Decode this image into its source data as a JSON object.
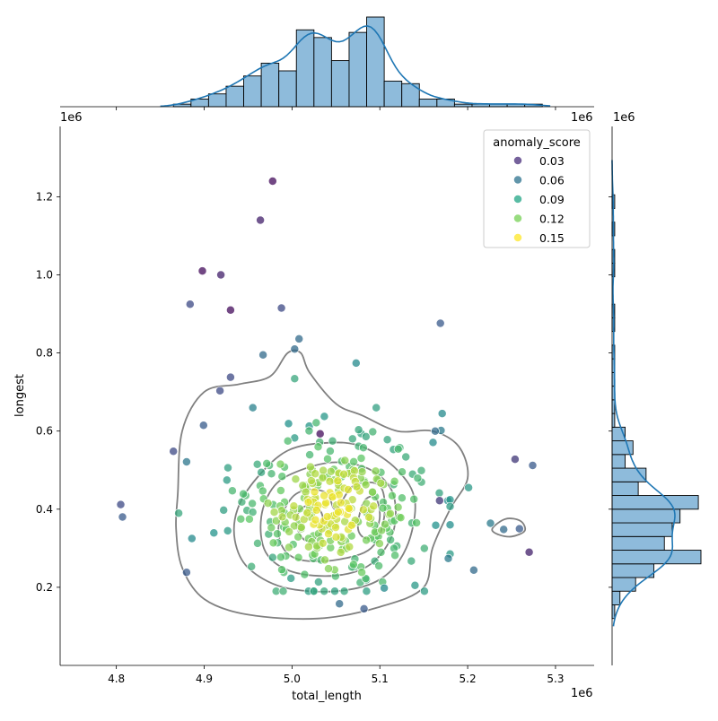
{
  "chart_data": {
    "type": "scatter",
    "subtype": "jointplot",
    "xlabel": "total_length",
    "ylabel": "longest",
    "x_offset_text": "1e6",
    "y_offset_text": "1e6",
    "top_offset_text": "1e6",
    "right_offset_text": "1e6",
    "xlim": [
      4.736,
      5.344
    ],
    "ylim": [
      0.0,
      1.38
    ],
    "x_ticks": [
      4.8,
      4.9,
      5.0,
      5.1,
      5.2,
      5.3
    ],
    "x_tick_labels": [
      "4.8",
      "4.9",
      "5.0",
      "5.1",
      "5.2",
      "5.3"
    ],
    "y_ticks": [
      0.2,
      0.4,
      0.6,
      0.8,
      1.0,
      1.2
    ],
    "y_tick_labels": [
      "0.2",
      "0.4",
      "0.6",
      "0.8",
      "1.0",
      "1.2"
    ],
    "legend": {
      "title": "anomaly_score",
      "placement": "upper right",
      "entries": [
        {
          "label": "0.03",
          "color": "#472c7a"
        },
        {
          "label": "0.06",
          "color": "#2c718e"
        },
        {
          "label": "0.09",
          "color": "#21a685"
        },
        {
          "label": "0.12",
          "color": "#75d054"
        },
        {
          "label": "0.15",
          "color": "#fde725"
        }
      ]
    },
    "colormap": "viridis",
    "outliers": [
      {
        "x": 4.978,
        "y": 1.24,
        "score": 0.01
      },
      {
        "x": 4.964,
        "y": 1.14,
        "score": 0.02
      },
      {
        "x": 4.898,
        "y": 1.01,
        "score": 0.01
      },
      {
        "x": 4.919,
        "y": 1.0,
        "score": 0.02
      },
      {
        "x": 4.93,
        "y": 0.91,
        "score": 0.01
      },
      {
        "x": 4.884,
        "y": 0.925,
        "score": 0.04
      },
      {
        "x": 4.988,
        "y": 0.915,
        "score": 0.04
      },
      {
        "x": 5.169,
        "y": 0.876,
        "score": 0.05
      },
      {
        "x": 5.008,
        "y": 0.836,
        "score": 0.06
      },
      {
        "x": 5.003,
        "y": 0.81,
        "score": 0.06
      },
      {
        "x": 4.967,
        "y": 0.795,
        "score": 0.06
      },
      {
        "x": 5.073,
        "y": 0.774,
        "score": 0.08
      },
      {
        "x": 4.93,
        "y": 0.738,
        "score": 0.04
      },
      {
        "x": 4.918,
        "y": 0.703,
        "score": 0.04
      },
      {
        "x": 5.003,
        "y": 0.734,
        "score": 0.1
      },
      {
        "x": 5.032,
        "y": 0.593,
        "score": 0.01
      },
      {
        "x": 4.865,
        "y": 0.548,
        "score": 0.04
      },
      {
        "x": 4.805,
        "y": 0.412,
        "score": 0.04
      },
      {
        "x": 4.807,
        "y": 0.38,
        "score": 0.05
      },
      {
        "x": 5.254,
        "y": 0.528,
        "score": 0.03
      },
      {
        "x": 5.274,
        "y": 0.512,
        "score": 0.05
      },
      {
        "x": 5.168,
        "y": 0.422,
        "score": 0.03
      },
      {
        "x": 5.27,
        "y": 0.29,
        "score": 0.02
      },
      {
        "x": 5.241,
        "y": 0.348,
        "score": 0.06
      },
      {
        "x": 5.259,
        "y": 0.35,
        "score": 0.05
      },
      {
        "x": 5.226,
        "y": 0.364,
        "score": 0.07
      },
      {
        "x": 5.207,
        "y": 0.244,
        "score": 0.06
      },
      {
        "x": 5.178,
        "y": 0.274,
        "score": 0.07
      },
      {
        "x": 5.082,
        "y": 0.145,
        "score": 0.05
      },
      {
        "x": 5.054,
        "y": 0.158,
        "score": 0.06
      },
      {
        "x": 5.171,
        "y": 0.645,
        "score": 0.08
      },
      {
        "x": 5.163,
        "y": 0.6,
        "score": 0.06
      },
      {
        "x": 5.201,
        "y": 0.455,
        "score": 0.09
      },
      {
        "x": 4.871,
        "y": 0.39,
        "score": 0.1
      },
      {
        "x": 4.886,
        "y": 0.325,
        "score": 0.08
      },
      {
        "x": 5.14,
        "y": 0.205,
        "score": 0.09
      },
      {
        "x": 5.105,
        "y": 0.198,
        "score": 0.08
      }
    ],
    "cluster": {
      "n": 330,
      "center": [
        5.04,
        0.4
      ],
      "spread": [
        0.055,
        0.105
      ],
      "note": "dense cluster of points colored by anomaly_score between approx 0.03 and 0.16"
    },
    "contours": [
      {
        "level": 1,
        "color": "#808080",
        "points": [
          [
            4.87,
            0.44
          ],
          [
            4.875,
            0.6
          ],
          [
            4.9,
            0.7
          ],
          [
            4.94,
            0.72
          ],
          [
            4.975,
            0.74
          ],
          [
            4.995,
            0.8
          ],
          [
            5.01,
            0.8
          ],
          [
            5.02,
            0.75
          ],
          [
            5.05,
            0.67
          ],
          [
            5.08,
            0.64
          ],
          [
            5.12,
            0.6
          ],
          [
            5.16,
            0.6
          ],
          [
            5.19,
            0.56
          ],
          [
            5.2,
            0.48
          ],
          [
            5.18,
            0.4
          ],
          [
            5.16,
            0.3
          ],
          [
            5.15,
            0.2
          ],
          [
            5.1,
            0.15
          ],
          [
            5.03,
            0.12
          ],
          [
            4.95,
            0.13
          ],
          [
            4.9,
            0.17
          ],
          [
            4.875,
            0.25
          ],
          [
            4.868,
            0.35
          ]
        ]
      },
      {
        "level": 2,
        "color": "#808080",
        "points": [
          [
            4.938,
            0.4
          ],
          [
            4.96,
            0.48
          ],
          [
            4.995,
            0.55
          ],
          [
            5.04,
            0.57
          ],
          [
            5.08,
            0.56
          ],
          [
            5.12,
            0.5
          ],
          [
            5.14,
            0.42
          ],
          [
            5.13,
            0.3
          ],
          [
            5.1,
            0.22
          ],
          [
            5.05,
            0.19
          ],
          [
            4.99,
            0.2
          ],
          [
            4.95,
            0.25
          ],
          [
            4.935,
            0.32
          ]
        ]
      },
      {
        "level": 3,
        "color": "#808080",
        "points": [
          [
            4.965,
            0.38
          ],
          [
            4.98,
            0.46
          ],
          [
            5.01,
            0.5
          ],
          [
            5.05,
            0.52
          ],
          [
            5.09,
            0.5
          ],
          [
            5.115,
            0.44
          ],
          [
            5.115,
            0.34
          ],
          [
            5.09,
            0.26
          ],
          [
            5.05,
            0.23
          ],
          [
            5.0,
            0.24
          ],
          [
            4.97,
            0.29
          ]
        ]
      },
      {
        "level": 4,
        "color": "#808080",
        "points": [
          [
            4.985,
            0.36
          ],
          [
            5.0,
            0.43
          ],
          [
            5.02,
            0.45
          ],
          [
            5.04,
            0.44
          ],
          [
            5.05,
            0.4
          ],
          [
            5.07,
            0.46
          ],
          [
            5.1,
            0.46
          ],
          [
            5.105,
            0.38
          ],
          [
            5.09,
            0.3
          ],
          [
            5.05,
            0.27
          ],
          [
            5.01,
            0.27
          ],
          [
            4.99,
            0.3
          ]
        ]
      },
      {
        "level": 5,
        "color": "#808080",
        "points": [
          [
            5.005,
            0.36
          ],
          [
            5.01,
            0.4
          ],
          [
            5.025,
            0.41
          ],
          [
            5.035,
            0.38
          ],
          [
            5.03,
            0.33
          ],
          [
            5.015,
            0.32
          ]
        ]
      },
      {
        "level": 6,
        "color": "#808080",
        "points": [
          [
            5.075,
            0.36
          ],
          [
            5.082,
            0.42
          ],
          [
            5.095,
            0.43
          ],
          [
            5.1,
            0.38
          ],
          [
            5.092,
            0.33
          ],
          [
            5.08,
            0.33
          ]
        ]
      },
      {
        "level": 7,
        "color": "#808080",
        "points": [
          [
            5.228,
            0.35
          ],
          [
            5.243,
            0.375
          ],
          [
            5.26,
            0.37
          ],
          [
            5.265,
            0.345
          ],
          [
            5.25,
            0.33
          ],
          [
            5.235,
            0.335
          ]
        ]
      }
    ],
    "x_histogram": {
      "bin_edges": [
        4.865,
        4.885,
        4.905,
        4.925,
        4.945,
        4.965,
        4.985,
        5.005,
        5.025,
        5.045,
        5.065,
        5.085,
        5.105,
        5.125,
        5.145,
        5.165,
        5.185,
        5.205,
        5.225,
        5.245,
        5.265,
        5.285
      ],
      "counts": [
        1,
        3,
        5,
        8,
        12,
        17,
        14,
        30,
        27,
        18,
        29,
        35,
        10,
        9,
        3,
        3,
        1,
        1,
        1,
        1,
        1
      ],
      "fill": "#8ebbdb",
      "kde_color": "#1f77b4"
    },
    "y_histogram": {
      "bin_edges": [
        0.12,
        0.155,
        0.19,
        0.225,
        0.26,
        0.295,
        0.33,
        0.365,
        0.4,
        0.435,
        0.47,
        0.505,
        0.54,
        0.575,
        0.61,
        0.645,
        0.68,
        0.715,
        0.75,
        0.785,
        0.82,
        0.855,
        0.89,
        0.925,
        0.96,
        0.995,
        1.03,
        1.065,
        1.1,
        1.135,
        1.17,
        1.205,
        1.24
      ],
      "counts": [
        1,
        3,
        9,
        16,
        34,
        20,
        23,
        26,
        33,
        10,
        13,
        5,
        8,
        5,
        1,
        1,
        1,
        1,
        1,
        1,
        0,
        1,
        1,
        0,
        0,
        1,
        1,
        0,
        1,
        0,
        1,
        0
      ],
      "fill": "#8ebbdb",
      "kde_color": "#1f77b4"
    }
  }
}
